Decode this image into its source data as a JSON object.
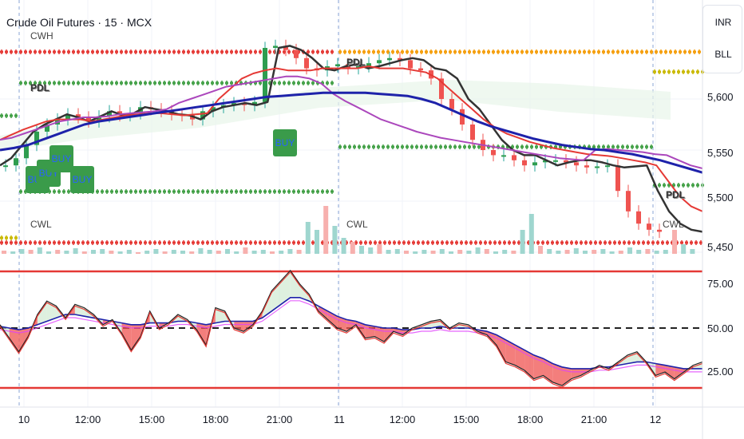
{
  "header": {
    "title": "Crude Oil Futures · 15 · MCX"
  },
  "sidebar": {
    "currency": "INR",
    "unit": "BLL"
  },
  "price_axis": {
    "ticks": [
      "5,600",
      "5,550",
      "5,500",
      "5,450"
    ]
  },
  "osc_axis": {
    "ticks": [
      "75.00",
      "50.00",
      "25.00"
    ]
  },
  "time_axis": {
    "ticks": [
      "10",
      "12:00",
      "15:00",
      "18:00",
      "21:00",
      "11",
      "12:00",
      "15:00",
      "18:00",
      "21:00",
      "12"
    ]
  },
  "levels": {
    "cwh": "CWH",
    "cwl": "CWL",
    "pdl": "PDL",
    "pdh": "PDH"
  },
  "signals": {
    "buy": "BUY"
  },
  "colors": {
    "up": "#26a69a",
    "down": "#ef5350",
    "ema_fast": "#e53935",
    "ema_mid": "#ab47bc",
    "ema_slow": "#1e22aa",
    "vwap": "#333333",
    "green_dots": "#43a047",
    "orange_dots": "#f59e0b",
    "red_dots": "#e53935"
  },
  "chart_data": [
    {
      "type": "line",
      "title": "Crude Oil Futures · 15 · MCX",
      "y_ticks": [
        5600,
        5550,
        5500,
        5450
      ],
      "ylim": [
        5440,
        5680
      ],
      "x_ticks": [
        "10",
        "12:00",
        "15:00",
        "18:00",
        "21:00",
        "11",
        "12:00",
        "15:00",
        "18:00",
        "21:00",
        "12"
      ],
      "series": [
        {
          "values": [
            5535,
            5542,
            5555,
            5568,
            5575,
            5580,
            5585,
            5582,
            5578,
            5583,
            5588,
            5584,
            5586,
            5592,
            5590,
            5588,
            5585,
            5584,
            5580,
            5588,
            5592,
            5594,
            5596,
            5594,
            5597,
            5650,
            5652,
            5648,
            5640,
            5630,
            5628,
            5632,
            5634,
            5630,
            5632,
            5635,
            5638,
            5640,
            5638,
            5630,
            5628,
            5620,
            5600,
            5590,
            5575,
            5560,
            5550,
            5545,
            5545,
            5540,
            5535,
            5538,
            5540,
            5540,
            5538,
            5535,
            5533,
            5534,
            5535,
            5510,
            5490,
            5478,
            5472,
            5470
          ]
        },
        {
          "values": [
            5560,
            5565,
            5570,
            5574,
            5578,
            5580,
            5580,
            5580,
            5578,
            5580,
            5582,
            5584,
            5585,
            5586,
            5586,
            5585,
            5584,
            5585,
            5586,
            5600,
            5610,
            5620,
            5625,
            5628,
            5630,
            5628,
            5628,
            5628,
            5630,
            5630,
            5630,
            5630,
            5632,
            5630,
            5630,
            5630,
            5628,
            5626,
            5620,
            5610,
            5600,
            5590,
            5580,
            5572,
            5566,
            5562,
            5558,
            5555,
            5552,
            5550,
            5548,
            5546,
            5545,
            5544,
            5542,
            5540,
            5538,
            5535,
            5520,
            5505,
            5495,
            5490
          ]
        },
        {
          "values": [
            5560,
            5562,
            5566,
            5570,
            5574,
            5578,
            5580,
            5582,
            5582,
            5583,
            5585,
            5586,
            5587,
            5588,
            5590,
            5596,
            5600,
            5604,
            5608,
            5612,
            5614,
            5616,
            5618,
            5620,
            5622,
            5622,
            5620,
            5615,
            5605,
            5598,
            5592,
            5586,
            5580,
            5576,
            5572,
            5568,
            5565,
            5562,
            5560,
            5558,
            5556,
            5554,
            5552,
            5550,
            5548,
            5546,
            5544,
            5542,
            5541,
            5540,
            5550,
            5551,
            5550,
            5549,
            5548,
            5546,
            5545,
            5540,
            5535,
            5532
          ]
        },
        {
          "values": [
            5550,
            5552,
            5555,
            5560,
            5565,
            5570,
            5575,
            5578,
            5580,
            5582,
            5584,
            5586,
            5588,
            5590,
            5592,
            5594,
            5596,
            5598,
            5600,
            5602,
            5603,
            5604,
            5605,
            5606,
            5606,
            5606,
            5606,
            5605,
            5604,
            5603,
            5600,
            5596,
            5590,
            5584,
            5578,
            5573,
            5569,
            5565,
            5561,
            5558,
            5555,
            5553,
            5551,
            5550,
            5548,
            5546,
            5543,
            5540,
            5536,
            5532,
            5528
          ]
        }
      ]
    },
    {
      "type": "area",
      "ylim": [
        15,
        90
      ],
      "y_ticks": [
        75,
        50,
        25
      ],
      "series": [
        {
          "values": [
            52,
            44,
            36,
            45,
            58,
            66,
            63,
            56,
            64,
            62,
            58,
            52,
            55,
            47,
            37,
            45,
            60,
            50,
            53,
            58,
            55,
            49,
            40,
            62,
            60,
            50,
            48,
            52,
            60,
            72,
            78,
            84,
            76,
            70,
            60,
            55,
            50,
            48,
            52,
            44,
            45,
            42,
            48,
            46,
            50,
            52,
            54,
            55,
            50,
            53,
            52,
            48,
            46,
            40,
            30,
            28,
            25,
            20,
            22,
            18,
            16,
            20,
            22,
            25,
            28,
            26,
            30,
            34,
            36,
            30,
            22,
            24,
            20,
            24,
            28,
            30
          ]
        },
        {
          "values": [
            51,
            50,
            49,
            50,
            52,
            54,
            56,
            58,
            58,
            57,
            56,
            55,
            54,
            53,
            52,
            52,
            53,
            53,
            53,
            54,
            54,
            53,
            52,
            53,
            54,
            54,
            54,
            54,
            56,
            60,
            64,
            68,
            68,
            66,
            63,
            60,
            57,
            55,
            54,
            52,
            51,
            50,
            50,
            49,
            49,
            50,
            50,
            51,
            50,
            50,
            50,
            49,
            48,
            46,
            43,
            40,
            37,
            34,
            32,
            29,
            27,
            26,
            26,
            26,
            27,
            27,
            28,
            29,
            30,
            30,
            29,
            28,
            27,
            26,
            26,
            26
          ]
        }
      ]
    }
  ]
}
